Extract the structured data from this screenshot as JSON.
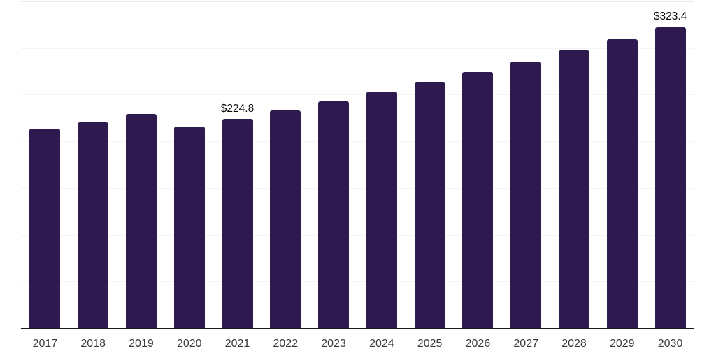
{
  "chart_data": {
    "type": "bar",
    "title": "",
    "categories": [
      "2017",
      "2018",
      "2019",
      "2020",
      "2021",
      "2022",
      "2023",
      "2024",
      "2025",
      "2026",
      "2027",
      "2028",
      "2029",
      "2030"
    ],
    "values": [
      214.0,
      221.4,
      230.3,
      216.5,
      224.8,
      234.1,
      243.7,
      253.8,
      264.2,
      275.1,
      286.4,
      298.2,
      310.5,
      323.4
    ],
    "data_labels": {
      "4": "$224.8",
      "13": "$323.4"
    },
    "value_prefix": "$",
    "xlabel": "",
    "ylabel": "",
    "ylim": [
      0,
      350
    ],
    "gridline_step": 50,
    "grid": "horizontal",
    "legend": "none",
    "y_axis_tick_labels": "none"
  },
  "style": {
    "bar_color": "#2e1a4e",
    "axis_line_color": "#1a1a1a",
    "gridline_color": "#f4f4f4",
    "plot_top_border_color": "#e9e9e9",
    "data_label_color": "#0d0d0d",
    "tick_label_color": "#3a3a3a",
    "background": "#ffffff"
  }
}
